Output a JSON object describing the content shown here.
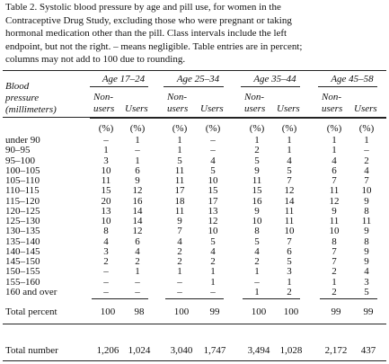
{
  "caption": [
    "Table 2.  Systolic blood pressure by age and pill use, for women in the",
    "Contraceptive Drug Study, excluding those who were pregnant or taking",
    "hormonal medication other than the pill. Class intervals include the left",
    "endpoint, but not the right. – means negligible. Table entries are in percent;",
    "columns may not add to 100 due to rounding."
  ],
  "table": {
    "stub_header": [
      "Blood",
      "pressure",
      "(millimeters)"
    ],
    "groups": [
      "Age 17–24",
      "Age 25–34",
      "Age 35–44",
      "Age 45–58"
    ],
    "non_users": [
      "Non-",
      "users"
    ],
    "users": "Users",
    "unit": "(%)",
    "rows": [
      {
        "label": "under 90",
        "cells": [
          "–",
          "1",
          "1",
          "–",
          "1",
          "1",
          "1",
          "1"
        ]
      },
      {
        "label": "90–95",
        "cells": [
          "1",
          "–",
          "1",
          "–",
          "2",
          "1",
          "1",
          "–"
        ]
      },
      {
        "label": "95–100",
        "cells": [
          "3",
          "1",
          "5",
          "4",
          "5",
          "4",
          "4",
          "2"
        ]
      },
      {
        "label": "100–105",
        "cells": [
          "10",
          "6",
          "11",
          "5",
          "9",
          "5",
          "6",
          "4"
        ]
      },
      {
        "label": "105–110",
        "cells": [
          "11",
          "9",
          "11",
          "10",
          "11",
          "7",
          "7",
          "7"
        ]
      },
      {
        "label": "110–115",
        "cells": [
          "15",
          "12",
          "17",
          "15",
          "15",
          "12",
          "11",
          "10"
        ]
      },
      {
        "label": "115–120",
        "cells": [
          "20",
          "16",
          "18",
          "17",
          "16",
          "14",
          "12",
          "9"
        ]
      },
      {
        "label": "120–125",
        "cells": [
          "13",
          "14",
          "11",
          "13",
          "9",
          "11",
          "9",
          "8"
        ]
      },
      {
        "label": "125–130",
        "cells": [
          "10",
          "14",
          "9",
          "12",
          "10",
          "11",
          "11",
          "11"
        ]
      },
      {
        "label": "130–135",
        "cells": [
          "8",
          "12",
          "7",
          "10",
          "8",
          "10",
          "10",
          "9"
        ]
      },
      {
        "label": "135–140",
        "cells": [
          "4",
          "6",
          "4",
          "5",
          "5",
          "7",
          "8",
          "8"
        ]
      },
      {
        "label": "140–145",
        "cells": [
          "3",
          "4",
          "2",
          "4",
          "4",
          "6",
          "7",
          "9"
        ]
      },
      {
        "label": "145–150",
        "cells": [
          "2",
          "2",
          "2",
          "2",
          "2",
          "5",
          "7",
          "9"
        ]
      },
      {
        "label": "150–155",
        "cells": [
          "–",
          "1",
          "1",
          "1",
          "1",
          "3",
          "2",
          "4"
        ]
      },
      {
        "label": "155–160",
        "cells": [
          "–",
          "–",
          "–",
          "1",
          "–",
          "1",
          "1",
          "3"
        ]
      },
      {
        "label": "160 and over",
        "cells": [
          "–",
          "–",
          "–",
          "–",
          "1",
          "2",
          "2",
          "5"
        ]
      }
    ],
    "totals": [
      {
        "label": "Total percent",
        "cells": [
          "100",
          "98",
          "100",
          "99",
          "100",
          "100",
          "99",
          "99"
        ]
      },
      {
        "label": "Total number",
        "cells": [
          "1,206",
          "1,024",
          "3,040",
          "1,747",
          "3,494",
          "1,028",
          "2,172",
          "437"
        ]
      }
    ]
  }
}
